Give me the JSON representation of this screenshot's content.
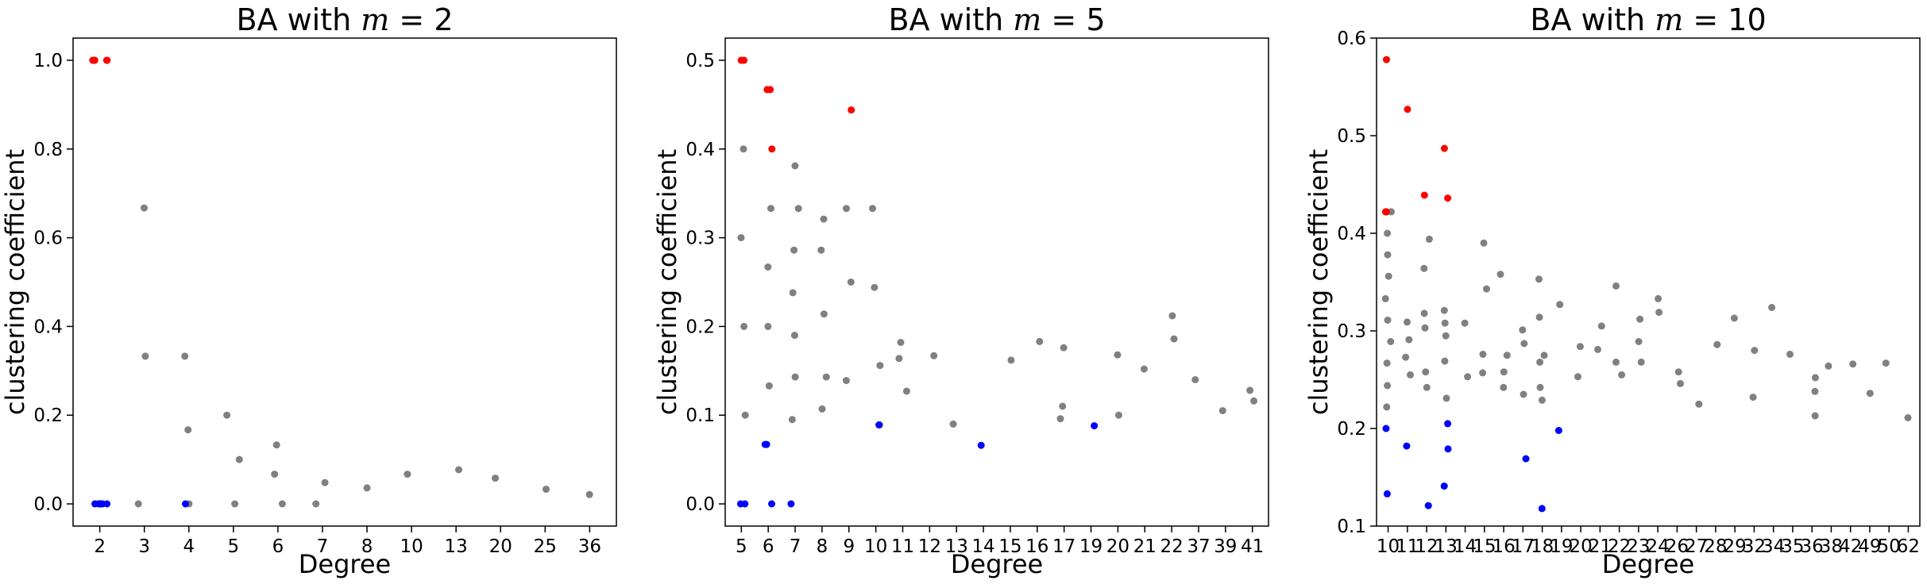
{
  "chart_data": [
    {
      "type": "scatter",
      "title_prefix": "BA with ",
      "title_math": "m",
      "title_suffix": " = 2",
      "xlabel": "Degree",
      "ylabel": "clustering coefficient",
      "categories": [
        "2",
        "3",
        "4",
        "5",
        "6",
        "7",
        "8",
        "10",
        "13",
        "20",
        "25",
        "36"
      ],
      "ylim": [
        -0.05,
        1.05
      ],
      "yticks": [
        0.0,
        0.2,
        0.4,
        0.6,
        0.8,
        1.0
      ],
      "ytick_labels": [
        "0.0",
        "0.2",
        "0.4",
        "0.6",
        "0.8",
        "1.0"
      ],
      "series": [
        {
          "color": "#808080",
          "points": [
            [
              "3",
              0.667
            ],
            [
              "3",
              0.333
            ],
            [
              "3",
              0
            ],
            [
              "4",
              0.333
            ],
            [
              "4",
              0.167
            ],
            [
              "4",
              0
            ],
            [
              "5",
              0.2
            ],
            [
              "5",
              0.1
            ],
            [
              "5",
              0
            ],
            [
              "6",
              0.133
            ],
            [
              "6",
              0.067
            ],
            [
              "6",
              0
            ],
            [
              "7",
              0.048
            ],
            [
              "7",
              0
            ],
            [
              "8",
              0.036
            ],
            [
              "10",
              0.067
            ],
            [
              "13",
              0.077
            ],
            [
              "20",
              0.058
            ],
            [
              "25",
              0.033
            ],
            [
              "36",
              0.021
            ]
          ]
        },
        {
          "color": "#ff0000",
          "points": [
            [
              "2",
              1.0
            ],
            [
              "2",
              1.0
            ],
            [
              "2",
              1.0
            ],
            [
              "2",
              1.0
            ],
            [
              "2",
              1.0
            ]
          ]
        },
        {
          "color": "#0000ff",
          "points": [
            [
              "2",
              0
            ],
            [
              "2",
              0
            ],
            [
              "2",
              0
            ],
            [
              "2",
              0
            ],
            [
              "2",
              0
            ],
            [
              "2",
              0
            ],
            [
              "4",
              0
            ]
          ]
        }
      ]
    },
    {
      "type": "scatter",
      "title_prefix": "BA with ",
      "title_math": "m",
      "title_suffix": " = 5",
      "xlabel": "Degree",
      "ylabel": "clustering coefficient",
      "categories": [
        "5",
        "6",
        "7",
        "8",
        "9",
        "10",
        "11",
        "12",
        "13",
        "14",
        "15",
        "16",
        "17",
        "19",
        "20",
        "21",
        "22",
        "37",
        "39",
        "41"
      ],
      "ylim": [
        -0.025,
        0.525
      ],
      "yticks": [
        0.0,
        0.1,
        0.2,
        0.3,
        0.4,
        0.5
      ],
      "ytick_labels": [
        "0.0",
        "0.1",
        "0.2",
        "0.3",
        "0.4",
        "0.5"
      ],
      "series": [
        {
          "color": "#808080",
          "points": [
            [
              "5",
              0.4
            ],
            [
              "5",
              0.3
            ],
            [
              "5",
              0.2
            ],
            [
              "5",
              0.1
            ],
            [
              "6",
              0.333
            ],
            [
              "6",
              0.267
            ],
            [
              "6",
              0.2
            ],
            [
              "6",
              0.133
            ],
            [
              "7",
              0.381
            ],
            [
              "7",
              0.333
            ],
            [
              "7",
              0.286
            ],
            [
              "7",
              0.238
            ],
            [
              "7",
              0.19
            ],
            [
              "7",
              0.143
            ],
            [
              "7",
              0.095
            ],
            [
              "8",
              0.321
            ],
            [
              "8",
              0.286
            ],
            [
              "8",
              0.214
            ],
            [
              "8",
              0.143
            ],
            [
              "8",
              0.107
            ],
            [
              "9",
              0.333
            ],
            [
              "9",
              0.25
            ],
            [
              "9",
              0.139
            ],
            [
              "10",
              0.333
            ],
            [
              "10",
              0.244
            ],
            [
              "10",
              0.156
            ],
            [
              "10",
              0.089
            ],
            [
              "11",
              0.182
            ],
            [
              "11",
              0.164
            ],
            [
              "11",
              0.127
            ],
            [
              "12",
              0.167
            ],
            [
              "13",
              0.09
            ],
            [
              "15",
              0.162
            ],
            [
              "16",
              0.183
            ],
            [
              "17",
              0.176
            ],
            [
              "17",
              0.11
            ],
            [
              "17",
              0.096
            ],
            [
              "20",
              0.168
            ],
            [
              "20",
              0.1
            ],
            [
              "21",
              0.152
            ],
            [
              "22",
              0.212
            ],
            [
              "22",
              0.186
            ],
            [
              "37",
              0.14
            ],
            [
              "39",
              0.105
            ],
            [
              "41",
              0.128
            ],
            [
              "41",
              0.116
            ]
          ]
        },
        {
          "color": "#ff0000",
          "points": [
            [
              "5",
              0.5
            ],
            [
              "5",
              0.5
            ],
            [
              "6",
              0.467
            ],
            [
              "6",
              0.467
            ],
            [
              "6",
              0.4
            ],
            [
              "9",
              0.444
            ]
          ]
        },
        {
          "color": "#0000ff",
          "points": [
            [
              "5",
              0
            ],
            [
              "5",
              0
            ],
            [
              "6",
              0.067
            ],
            [
              "6",
              0.067
            ],
            [
              "6",
              0
            ],
            [
              "7",
              0
            ],
            [
              "10",
              0.089
            ],
            [
              "14",
              0.066
            ],
            [
              "19",
              0.088
            ]
          ]
        }
      ]
    },
    {
      "type": "scatter",
      "title_prefix": "BA with ",
      "title_math": "m",
      "title_suffix": " = 10",
      "xlabel": "Degree",
      "ylabel": "clustering coefficient",
      "categories": [
        "10",
        "11",
        "12",
        "13",
        "14",
        "15",
        "16",
        "17",
        "18",
        "19",
        "20",
        "21",
        "22",
        "23",
        "24",
        "26",
        "27",
        "28",
        "29",
        "32",
        "34",
        "35",
        "36",
        "38",
        "42",
        "49",
        "50",
        "62"
      ],
      "ylim": [
        0.1,
        0.6
      ],
      "yticks": [
        0.1,
        0.2,
        0.3,
        0.4,
        0.5,
        0.6
      ],
      "ytick_labels": [
        "0.1",
        "0.2",
        "0.3",
        "0.4",
        "0.5",
        "0.6"
      ],
      "series": [
        {
          "color": "#808080",
          "points": [
            [
              "10",
              0.422
            ],
            [
              "10",
              0.4
            ],
            [
              "10",
              0.378
            ],
            [
              "10",
              0.356
            ],
            [
              "10",
              0.333
            ],
            [
              "10",
              0.311
            ],
            [
              "10",
              0.289
            ],
            [
              "10",
              0.267
            ],
            [
              "10",
              0.244
            ],
            [
              "10",
              0.222
            ],
            [
              "11",
              0.309
            ],
            [
              "11",
              0.291
            ],
            [
              "11",
              0.273
            ],
            [
              "11",
              0.255
            ],
            [
              "12",
              0.394
            ],
            [
              "12",
              0.364
            ],
            [
              "12",
              0.318
            ],
            [
              "12",
              0.303
            ],
            [
              "12",
              0.258
            ],
            [
              "12",
              0.242
            ],
            [
              "13",
              0.321
            ],
            [
              "13",
              0.308
            ],
            [
              "13",
              0.295
            ],
            [
              "13",
              0.269
            ],
            [
              "13",
              0.231
            ],
            [
              "14",
              0.308
            ],
            [
              "14",
              0.253
            ],
            [
              "15",
              0.39
            ],
            [
              "15",
              0.343
            ],
            [
              "15",
              0.276
            ],
            [
              "15",
              0.257
            ],
            [
              "16",
              0.358
            ],
            [
              "16",
              0.275
            ],
            [
              "16",
              0.258
            ],
            [
              "16",
              0.242
            ],
            [
              "17",
              0.301
            ],
            [
              "17",
              0.287
            ],
            [
              "17",
              0.235
            ],
            [
              "18",
              0.353
            ],
            [
              "18",
              0.314
            ],
            [
              "18",
              0.275
            ],
            [
              "18",
              0.268
            ],
            [
              "18",
              0.242
            ],
            [
              "18",
              0.229
            ],
            [
              "19",
              0.327
            ],
            [
              "20",
              0.284
            ],
            [
              "20",
              0.253
            ],
            [
              "21",
              0.305
            ],
            [
              "21",
              0.281
            ],
            [
              "22",
              0.346
            ],
            [
              "22",
              0.268
            ],
            [
              "22",
              0.255
            ],
            [
              "23",
              0.312
            ],
            [
              "23",
              0.289
            ],
            [
              "23",
              0.268
            ],
            [
              "24",
              0.333
            ],
            [
              "24",
              0.319
            ],
            [
              "26",
              0.258
            ],
            [
              "26",
              0.246
            ],
            [
              "27",
              0.225
            ],
            [
              "28",
              0.286
            ],
            [
              "29",
              0.313
            ],
            [
              "32",
              0.28
            ],
            [
              "32",
              0.232
            ],
            [
              "34",
              0.324
            ],
            [
              "35",
              0.276
            ],
            [
              "36",
              0.252
            ],
            [
              "36",
              0.238
            ],
            [
              "36",
              0.213
            ],
            [
              "38",
              0.264
            ],
            [
              "42",
              0.266
            ],
            [
              "49",
              0.236
            ],
            [
              "50",
              0.267
            ],
            [
              "62",
              0.211
            ]
          ]
        },
        {
          "color": "#ff0000",
          "points": [
            [
              "10",
              0.578
            ],
            [
              "10",
              0.422
            ],
            [
              "10",
              0.422
            ],
            [
              "11",
              0.527
            ],
            [
              "12",
              0.439
            ],
            [
              "13",
              0.487
            ],
            [
              "13",
              0.436
            ]
          ]
        },
        {
          "color": "#0000ff",
          "points": [
            [
              "10",
              0.2
            ],
            [
              "10",
              0.133
            ],
            [
              "11",
              0.182
            ],
            [
              "12",
              0.121
            ],
            [
              "13",
              0.205
            ],
            [
              "13",
              0.179
            ],
            [
              "13",
              0.141
            ],
            [
              "17",
              0.169
            ],
            [
              "18",
              0.118
            ],
            [
              "19",
              0.198
            ]
          ]
        }
      ]
    }
  ]
}
